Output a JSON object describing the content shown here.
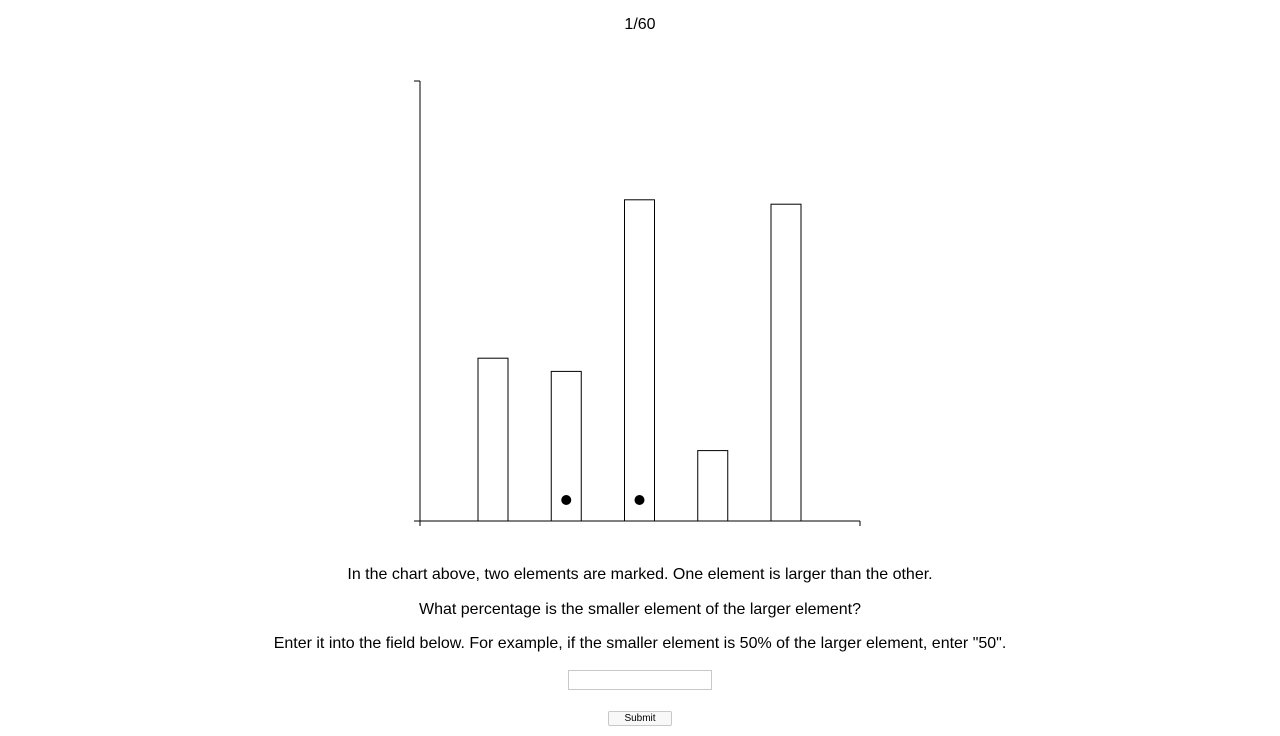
{
  "progress": {
    "counter": "1/60"
  },
  "chart_data": {
    "type": "bar",
    "categories": [
      "",
      "",
      "",
      "",
      ""
    ],
    "values": [
      37,
      34,
      73,
      16,
      72
    ],
    "marked_indices": [
      1,
      2
    ],
    "ylim": [
      0,
      100
    ],
    "title": "",
    "xlabel": "",
    "ylabel": "",
    "grid": false,
    "colors": {
      "bar_fill": "#ffffff",
      "bar_stroke": "#000000",
      "marker": "#000000",
      "axis": "#000000"
    }
  },
  "question": {
    "line1": "In the chart above, two elements are marked. One element is larger than the other.",
    "line2": "What percentage is the smaller element of the larger element?",
    "line3": "Enter it into the field below. For example, if the smaller element is 50% of the larger element, enter \"50\"."
  },
  "form": {
    "answer_value": "",
    "answer_placeholder": "",
    "submit_label": "Submit"
  }
}
